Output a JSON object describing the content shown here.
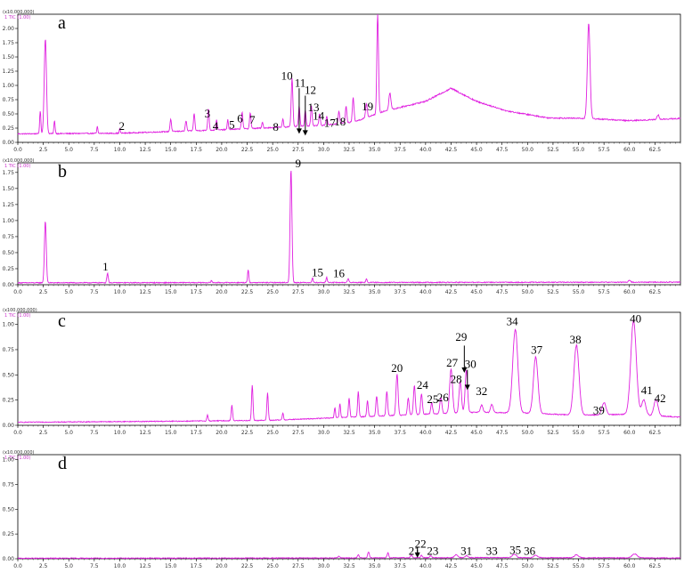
{
  "colors": {
    "trace": "#e020e0",
    "axis": "#000000",
    "text": "#000000"
  },
  "chart_data": [
    {
      "type": "line",
      "panel_label": "a",
      "scale_note": "(x10,000,000)",
      "trace_name": "1 TIC (1.00)",
      "xlim": [
        0,
        65
      ],
      "ylim": [
        0,
        2.25
      ],
      "x_ticks": [
        "0.0",
        "2.5",
        "5.0",
        "7.5",
        "10.0",
        "12.5",
        "15.0",
        "17.5",
        "20.0",
        "22.5",
        "25.0",
        "27.5",
        "30.0",
        "32.5",
        "35.0",
        "37.5",
        "40.0",
        "42.5",
        "45.0",
        "47.5",
        "50.0",
        "52.5",
        "55.0",
        "57.5",
        "60.0",
        "62.5"
      ],
      "y_ticks": [
        "0.00",
        "0.25",
        "0.50",
        "0.75",
        "1.00",
        "1.25",
        "1.50",
        "1.75",
        "2.00"
      ],
      "baseline": [
        [
          0,
          0.15
        ],
        [
          10,
          0.16
        ],
        [
          20,
          0.22
        ],
        [
          25,
          0.26
        ],
        [
          30,
          0.3
        ],
        [
          33,
          0.36
        ],
        [
          36,
          0.55
        ],
        [
          40,
          0.72
        ],
        [
          42.5,
          0.95
        ],
        [
          45,
          0.72
        ],
        [
          48,
          0.55
        ],
        [
          52,
          0.43
        ],
        [
          56,
          0.42
        ],
        [
          60,
          0.38
        ],
        [
          65,
          0.42
        ]
      ],
      "peaks": [
        [
          2.7,
          1.67,
          0.11
        ],
        [
          2.2,
          0.4,
          0.06
        ],
        [
          3.6,
          0.22,
          0.06
        ],
        [
          7.8,
          0.12,
          0.05
        ],
        [
          10,
          0.08,
          0.05
        ],
        [
          15,
          0.22,
          0.07
        ],
        [
          16.5,
          0.18,
          0.07
        ],
        [
          17.3,
          0.3,
          0.07
        ],
        [
          18.7,
          0.38,
          0.07
        ],
        [
          19.5,
          0.18,
          0.06
        ],
        [
          20.6,
          0.17,
          0.06
        ],
        [
          22,
          0.3,
          0.07
        ],
        [
          22.8,
          0.28,
          0.07
        ],
        [
          24,
          0.1,
          0.06
        ],
        [
          26,
          0.15,
          0.06
        ],
        [
          26.9,
          0.85,
          0.08
        ],
        [
          27.6,
          0.35,
          0.07
        ],
        [
          28.2,
          0.28,
          0.07
        ],
        [
          28.8,
          0.35,
          0.07
        ],
        [
          29.6,
          0.2,
          0.07
        ],
        [
          30.3,
          0.15,
          0.07
        ],
        [
          31.5,
          0.22,
          0.07
        ],
        [
          32.2,
          0.3,
          0.07
        ],
        [
          32.9,
          0.42,
          0.08
        ],
        [
          34.2,
          0.25,
          0.08
        ],
        [
          35.3,
          1.78,
          0.08
        ],
        [
          36.5,
          0.3,
          0.1
        ],
        [
          56,
          1.67,
          0.13
        ],
        [
          62.8,
          0.08,
          0.1
        ]
      ],
      "peak_labels": [
        {
          "label": "2",
          "x": 10.2,
          "y": 0.22
        },
        {
          "label": "3",
          "x": 18.6,
          "y": 0.44
        },
        {
          "label": "4",
          "x": 19.4,
          "y": 0.22
        },
        {
          "label": "5",
          "x": 21,
          "y": 0.24
        },
        {
          "label": "6",
          "x": 21.8,
          "y": 0.35
        },
        {
          "label": "7",
          "x": 23,
          "y": 0.33
        },
        {
          "label": "8",
          "x": 25.3,
          "y": 0.2
        },
        {
          "label": "10",
          "x": 26.4,
          "y": 1.1
        },
        {
          "label": "11",
          "x": 27.7,
          "y": 0.98
        },
        {
          "label": "12",
          "x": 28.7,
          "y": 0.85
        },
        {
          "label": "13",
          "x": 29,
          "y": 0.55
        },
        {
          "label": "14",
          "x": 29.5,
          "y": 0.4
        },
        {
          "label": "17",
          "x": 30.6,
          "y": 0.27
        },
        {
          "label": "18",
          "x": 31.6,
          "y": 0.3
        },
        {
          "label": "19",
          "x": 34.3,
          "y": 0.56
        }
      ],
      "arrows": [
        {
          "x": 27.6,
          "y_from": 0.95,
          "y_to": 0.15
        },
        {
          "x": 28.2,
          "y_from": 0.82,
          "y_to": 0.12
        }
      ]
    },
    {
      "type": "line",
      "panel_label": "b",
      "scale_note": "(x10,000,000)",
      "trace_name": "1 TIC (1.00)",
      "xlim": [
        0,
        65
      ],
      "ylim": [
        0,
        1.9
      ],
      "x_ticks": [
        "0.0",
        "2.5",
        "5.0",
        "7.5",
        "10.0",
        "12.5",
        "15.0",
        "17.5",
        "20.0",
        "22.5",
        "25.0",
        "27.5",
        "30.0",
        "32.5",
        "35.0",
        "37.5",
        "40.0",
        "42.5",
        "45.0",
        "47.5",
        "50.0",
        "52.5",
        "55.0",
        "57.5",
        "60.0",
        "62.5"
      ],
      "y_ticks": [
        "0.00",
        "0.25",
        "0.50",
        "0.75",
        "1.00",
        "1.25",
        "1.50",
        "1.75"
      ],
      "baseline": [
        [
          0,
          0.03
        ],
        [
          65,
          0.04
        ]
      ],
      "peaks": [
        [
          2.7,
          0.97,
          0.09
        ],
        [
          8.8,
          0.15,
          0.07
        ],
        [
          22.6,
          0.2,
          0.06
        ],
        [
          26.8,
          1.77,
          0.09
        ],
        [
          28.9,
          0.07,
          0.06
        ],
        [
          30.3,
          0.08,
          0.06
        ],
        [
          32.4,
          0.06,
          0.07
        ],
        [
          34.2,
          0.05,
          0.07
        ],
        [
          19,
          0.03,
          0.06
        ],
        [
          60,
          0.03,
          0.1
        ]
      ],
      "peak_labels": [
        {
          "label": "1",
          "x": 8.6,
          "y": 0.22
        },
        {
          "label": "9",
          "x": 27.5,
          "y": 1.83
        },
        {
          "label": "15",
          "x": 29.4,
          "y": 0.13
        },
        {
          "label": "16",
          "x": 31.5,
          "y": 0.12
        }
      ],
      "arrows": []
    },
    {
      "type": "line",
      "panel_label": "c",
      "scale_note": "(x100,000,000)",
      "trace_name": "1 TIC (1.00)",
      "xlim": [
        0,
        65
      ],
      "ylim": [
        0,
        1.12
      ],
      "x_ticks": [
        "0.0",
        "2.5",
        "5.0",
        "7.5",
        "10.0",
        "12.5",
        "15.0",
        "17.5",
        "20.0",
        "22.5",
        "25.0",
        "27.5",
        "30.0",
        "32.5",
        "35.0",
        "37.5",
        "40.0",
        "42.5",
        "45.0",
        "47.5",
        "50.0",
        "52.5",
        "55.0",
        "57.5",
        "60.0",
        "62.5"
      ],
      "y_ticks": [
        "0.00",
        "0.25",
        "0.50",
        "0.75",
        "1.00"
      ],
      "baseline": [
        [
          0,
          0.03
        ],
        [
          15,
          0.04
        ],
        [
          25,
          0.05
        ],
        [
          30,
          0.07
        ],
        [
          35,
          0.09
        ],
        [
          40,
          0.11
        ],
        [
          45,
          0.13
        ],
        [
          50,
          0.12
        ],
        [
          55,
          0.1
        ],
        [
          60,
          0.11
        ],
        [
          65,
          0.08
        ]
      ],
      "peaks": [
        [
          18.6,
          0.06,
          0.06
        ],
        [
          21,
          0.15,
          0.07
        ],
        [
          23,
          0.35,
          0.07
        ],
        [
          24.5,
          0.27,
          0.07
        ],
        [
          26,
          0.07,
          0.06
        ],
        [
          31.1,
          0.1,
          0.06
        ],
        [
          31.6,
          0.14,
          0.06
        ],
        [
          32.5,
          0.19,
          0.07
        ],
        [
          33.4,
          0.25,
          0.07
        ],
        [
          34.3,
          0.16,
          0.07
        ],
        [
          35.2,
          0.2,
          0.08
        ],
        [
          36.2,
          0.24,
          0.08
        ],
        [
          37.2,
          0.41,
          0.1
        ],
        [
          38.3,
          0.17,
          0.08
        ],
        [
          38.9,
          0.29,
          0.09
        ],
        [
          39.6,
          0.2,
          0.09
        ],
        [
          40.6,
          0.11,
          0.09
        ],
        [
          41.5,
          0.16,
          0.1
        ],
        [
          42.5,
          0.44,
          0.14
        ],
        [
          43.4,
          0.31,
          0.12
        ],
        [
          44,
          0.42,
          0.12
        ],
        [
          45.5,
          0.07,
          0.12
        ],
        [
          46.5,
          0.08,
          0.12
        ],
        [
          48.8,
          0.83,
          0.25
        ],
        [
          50.8,
          0.56,
          0.22
        ],
        [
          54.8,
          0.69,
          0.25
        ],
        [
          57.5,
          0.12,
          0.2
        ],
        [
          60.4,
          0.93,
          0.27
        ],
        [
          61.4,
          0.15,
          0.2
        ],
        [
          62.6,
          0.16,
          0.2
        ]
      ],
      "peak_labels": [
        {
          "label": "20",
          "x": 37.2,
          "y": 0.53
        },
        {
          "label": "24",
          "x": 39.7,
          "y": 0.36
        },
        {
          "label": "25",
          "x": 40.7,
          "y": 0.22
        },
        {
          "label": "26",
          "x": 41.7,
          "y": 0.24
        },
        {
          "label": "27",
          "x": 42.6,
          "y": 0.58
        },
        {
          "label": "28",
          "x": 43,
          "y": 0.42
        },
        {
          "label": "29",
          "x": 43.5,
          "y": 0.84
        },
        {
          "label": "30",
          "x": 44.4,
          "y": 0.57
        },
        {
          "label": "32",
          "x": 45.5,
          "y": 0.3
        },
        {
          "label": "34",
          "x": 48.5,
          "y": 0.99
        },
        {
          "label": "37",
          "x": 50.9,
          "y": 0.71
        },
        {
          "label": "38",
          "x": 54.7,
          "y": 0.81
        },
        {
          "label": "39",
          "x": 57,
          "y": 0.11
        },
        {
          "label": "40",
          "x": 60.6,
          "y": 1.02
        },
        {
          "label": "41",
          "x": 61.7,
          "y": 0.31
        },
        {
          "label": "42",
          "x": 63,
          "y": 0.23
        }
      ],
      "arrows": [
        {
          "x": 43.8,
          "y_from": 0.79,
          "y_to": 0.52
        },
        {
          "x": 44.1,
          "y_from": 0.55,
          "y_to": 0.35
        }
      ]
    },
    {
      "type": "line",
      "panel_label": "d",
      "scale_note": "(x10,000,000)",
      "trace_name": "1 TIC (1.00)",
      "xlim": [
        0,
        65
      ],
      "ylim": [
        0,
        1.05
      ],
      "x_ticks": [
        "0.0",
        "2.5",
        "5.0",
        "7.5",
        "10.0",
        "12.5",
        "15.0",
        "17.5",
        "20.0",
        "22.5",
        "25.0",
        "27.5",
        "30.0",
        "32.5",
        "35.0",
        "37.5",
        "40.0",
        "42.5",
        "45.0",
        "47.5",
        "50.0",
        "52.5",
        "55.0",
        "57.5",
        "60.0",
        "62.5"
      ],
      "y_ticks": [
        "0.00",
        "0.25",
        "0.50",
        "0.75",
        "1.00"
      ],
      "baseline": [
        [
          0,
          0.005
        ],
        [
          30,
          0.008
        ],
        [
          45,
          0.012
        ],
        [
          65,
          0.008
        ]
      ],
      "peaks": [
        [
          31.5,
          0.02,
          0.08
        ],
        [
          33.4,
          0.03,
          0.08
        ],
        [
          34.4,
          0.06,
          0.08
        ],
        [
          36.3,
          0.05,
          0.08
        ],
        [
          38.6,
          0.03,
          0.08
        ],
        [
          39.6,
          0.025,
          0.08
        ],
        [
          40.5,
          0.02,
          0.1
        ],
        [
          43,
          0.03,
          0.15
        ],
        [
          44,
          0.02,
          0.12
        ],
        [
          48.7,
          0.035,
          0.2
        ],
        [
          50.8,
          0.025,
          0.2
        ],
        [
          54.8,
          0.03,
          0.2
        ],
        [
          60.5,
          0.04,
          0.25
        ]
      ],
      "peak_labels": [
        {
          "label": "22",
          "x": 39.5,
          "y": 0.11
        },
        {
          "label": "21",
          "x": 38.9,
          "y": 0.04
        },
        {
          "label": "23",
          "x": 40.7,
          "y": 0.04
        },
        {
          "label": "31",
          "x": 44,
          "y": 0.04
        },
        {
          "label": "33",
          "x": 46.5,
          "y": 0.04
        },
        {
          "label": "35",
          "x": 48.8,
          "y": 0.05
        },
        {
          "label": "36",
          "x": 50.2,
          "y": 0.04
        }
      ],
      "arrows": [
        {
          "x": 39.2,
          "y_from": 0.09,
          "y_to": 0.01
        }
      ]
    }
  ]
}
